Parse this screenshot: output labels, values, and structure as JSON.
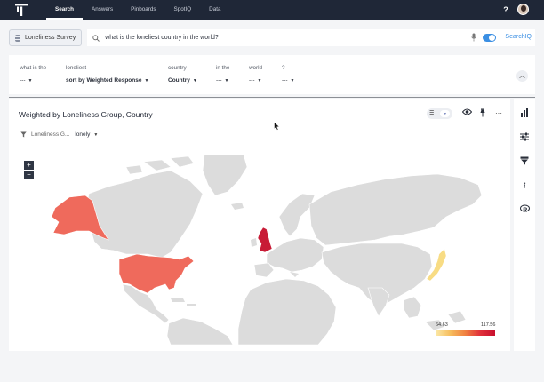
{
  "nav": {
    "tabs": [
      "Search",
      "Answers",
      "Pinboards",
      "SpotIQ",
      "Data"
    ],
    "help": "?"
  },
  "search": {
    "source": "Loneliness Survey",
    "query": "what is the loneliest country in the world?",
    "spotiq_label": "SearchIQ"
  },
  "tokens": [
    {
      "label": "what is the",
      "value": "---"
    },
    {
      "label": "loneliest",
      "value": "sort by Weighted Response"
    },
    {
      "label": "country",
      "value": "Country"
    },
    {
      "label": "in the",
      "value": "---"
    },
    {
      "label": "world",
      "value": "---"
    },
    {
      "label": "?",
      "value": "---"
    }
  ],
  "chart": {
    "title": "Weighted by Loneliness Group, Country",
    "filter_label": "Loneliness G...",
    "filter_value": "lonely",
    "zoom_in": "+",
    "zoom_out": "−",
    "legend_min": "64.63",
    "legend_max": "117.56"
  },
  "chart_data": {
    "type": "heatmap",
    "title": "Weighted by Loneliness Group, Country",
    "filter": {
      "field": "Loneliness Group",
      "value": "lonely"
    },
    "color_range": [
      64.63,
      117.56
    ],
    "regions": [
      {
        "name": "United States",
        "intensity": "mid"
      },
      {
        "name": "United Kingdom",
        "intensity": "high"
      },
      {
        "name": "Japan",
        "intensity": "low"
      }
    ]
  },
  "colors": {
    "nav_bg": "#1f2737",
    "accent": "#3b8fe3",
    "usa": "#ef6a5c",
    "uk": "#c81b36",
    "japan": "#f8dc84",
    "land": "#dcdcdc"
  },
  "rail_icons": [
    "bar-chart-icon",
    "sliders-icon",
    "funnel-icon",
    "info-icon",
    "r-icon"
  ]
}
